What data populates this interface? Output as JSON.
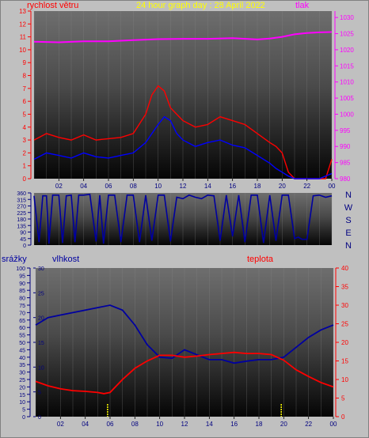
{
  "header": {
    "wind_label": "rychlost větru",
    "title": "24 hour graph day : 28 April 2022",
    "pressure_label": "tlak"
  },
  "bottom_header": {
    "rain_label": "srážky",
    "humidity_label": "vlhkost",
    "temp_label": "teplota"
  },
  "colors": {
    "background": "#c0c0c0",
    "wind": "#ff0000",
    "gust": "#0000ff",
    "pressure": "#ff00ff",
    "direction": "#0000a0",
    "humidity": "#0000a0",
    "temperature": "#ff0000",
    "rain_marks": "#ffff00",
    "title": "#ffff00"
  },
  "chart_data": [
    {
      "type": "line",
      "name": "wind-pressure",
      "x_ticks": [
        "02",
        "04",
        "06",
        "08",
        "10",
        "12",
        "14",
        "16",
        "18",
        "20",
        "22",
        "00"
      ],
      "xlim": [
        0,
        24
      ],
      "ylim_left": [
        0,
        13
      ],
      "ylim_right": [
        980,
        1032
      ],
      "left_ticks": [
        "0",
        "1",
        "2",
        "3",
        "4",
        "5",
        "6",
        "7",
        "8",
        "9",
        "10",
        "11",
        "12",
        "13"
      ],
      "right_ticks": [
        "980",
        "985",
        "990",
        "995",
        "1000",
        "1005",
        "1010",
        "1015",
        "1020",
        "1025",
        "1030"
      ],
      "series": [
        {
          "axis": "left",
          "x": [
            0,
            1,
            2,
            3,
            4,
            5,
            6,
            7,
            8,
            9,
            9.5,
            10,
            10.5,
            11,
            11.5,
            12,
            13,
            14,
            15,
            16,
            17,
            18,
            19,
            19.5,
            20,
            20.5,
            21,
            22,
            23,
            23.5,
            24
          ],
          "y": [
            3,
            3.5,
            3.2,
            3,
            3.4,
            3,
            3.1,
            3.2,
            3.5,
            5,
            6.5,
            7.2,
            6.8,
            5.5,
            5,
            4.5,
            4,
            4.2,
            4.8,
            4.5,
            4.2,
            3.5,
            2.8,
            2.5,
            2,
            0.5,
            0,
            0,
            0,
            0,
            1.5
          ]
        },
        {
          "axis": "left",
          "x": [
            0,
            1,
            2,
            3,
            4,
            5,
            6,
            7,
            8,
            9,
            10,
            10.5,
            11,
            11.5,
            12,
            13,
            14,
            15,
            16,
            17,
            18,
            19,
            19.5,
            20,
            20.5,
            21,
            22,
            23,
            24
          ],
          "y": [
            1.5,
            2,
            1.8,
            1.6,
            2,
            1.7,
            1.6,
            1.8,
            2,
            2.8,
            4.2,
            4.8,
            4.5,
            3.5,
            3,
            2.5,
            2.8,
            3,
            2.6,
            2.4,
            1.8,
            1.2,
            0.8,
            0.5,
            0.2,
            0,
            0,
            0,
            0.4
          ]
        },
        {
          "axis": "right",
          "x": [
            0,
            2,
            4,
            6,
            8,
            10,
            12,
            14,
            16,
            18,
            19,
            20,
            21,
            22,
            23,
            24
          ],
          "y": [
            1022.5,
            1022.3,
            1022.6,
            1022.6,
            1023,
            1023.3,
            1023.4,
            1023.4,
            1023.6,
            1023.2,
            1023.5,
            1024,
            1024.8,
            1025.2,
            1025.4,
            1025.5
          ]
        }
      ]
    },
    {
      "type": "line",
      "name": "wind-direction",
      "x_ticks": [
        "02",
        "04",
        "06",
        "08",
        "10",
        "12",
        "14",
        "16",
        "18",
        "20",
        "22",
        "00"
      ],
      "xlim": [
        0,
        24
      ],
      "ylim": [
        0,
        360
      ],
      "left_ticks": [
        "0",
        "45",
        "90",
        "135",
        "180",
        "225",
        "270",
        "315",
        "360"
      ],
      "compass": [
        "N",
        "W",
        "S",
        "E",
        "N"
      ],
      "series": [
        {
          "x": [
            0,
            0.4,
            0.7,
            1,
            1.2,
            1.5,
            2,
            2.3,
            2.6,
            3,
            3.3,
            3.6,
            4,
            4.5,
            5,
            5.3,
            5.6,
            6,
            6.5,
            7,
            7.5,
            8,
            8.5,
            9,
            9.5,
            10,
            10.5,
            11,
            11.5,
            12,
            12.5,
            13,
            13.5,
            14,
            14.5,
            15,
            15.5,
            16,
            16.5,
            17,
            17.5,
            18,
            18.5,
            19,
            19.5,
            20,
            20.5,
            21,
            21.3,
            21.6,
            22,
            22.5,
            23,
            23.5,
            24
          ],
          "y": [
            340,
            20,
            340,
            340,
            10,
            345,
            345,
            15,
            340,
            345,
            20,
            345,
            345,
            350,
            25,
            345,
            10,
            345,
            345,
            20,
            345,
            345,
            20,
            345,
            30,
            345,
            345,
            25,
            330,
            320,
            345,
            330,
            320,
            345,
            340,
            30,
            345,
            60,
            345,
            20,
            345,
            345,
            15,
            345,
            30,
            345,
            345,
            45,
            55,
            40,
            40,
            340,
            345,
            330,
            340
          ]
        }
      ]
    },
    {
      "type": "line",
      "name": "humidity-temperature",
      "x_ticks": [
        "02",
        "04",
        "06",
        "08",
        "10",
        "12",
        "14",
        "16",
        "18",
        "20",
        "22",
        "00"
      ],
      "xlim": [
        0,
        24
      ],
      "ylim_left": [
        0,
        30
      ],
      "ylim_right": [
        0,
        40
      ],
      "ylim_rain": [
        0,
        100
      ],
      "rain_ticks": [
        "0",
        "5",
        "10",
        "15",
        "20",
        "25",
        "30",
        "35",
        "40",
        "45",
        "50",
        "55",
        "60",
        "65",
        "70",
        "75",
        "80",
        "85",
        "90",
        "95",
        "100"
      ],
      "left_ticks": [
        "0",
        "5",
        "10",
        "15",
        "20",
        "25",
        "30"
      ],
      "right_ticks": [
        "0",
        "5",
        "10",
        "15",
        "20",
        "25",
        "30",
        "35",
        "40"
      ],
      "series": [
        {
          "axis": "left",
          "x": [
            0,
            1,
            2,
            3,
            4,
            5,
            6,
            7,
            8,
            9,
            10,
            11,
            12,
            13,
            14,
            15,
            16,
            17,
            18,
            19,
            20,
            21,
            22,
            23,
            24
          ],
          "y": [
            18.5,
            20,
            20.5,
            21,
            21.5,
            22,
            22.5,
            21.5,
            18.5,
            14.5,
            12,
            11.8,
            13.5,
            12.5,
            11.5,
            11.5,
            10.8,
            11.2,
            11.5,
            11.5,
            12,
            14,
            16,
            17.5,
            18.5
          ]
        },
        {
          "axis": "right",
          "x": [
            0,
            1,
            2,
            3,
            4,
            5,
            5.5,
            6,
            7,
            8,
            9,
            10,
            11,
            12,
            13,
            14,
            15,
            16,
            17,
            18,
            19,
            20,
            21,
            22,
            23,
            24
          ],
          "y": [
            9.5,
            8.3,
            7.5,
            7,
            6.8,
            6.5,
            6.2,
            6.5,
            10,
            13,
            15,
            16.5,
            16.5,
            16,
            16.3,
            16.7,
            17,
            17.3,
            17,
            17,
            16.7,
            15.2,
            12.6,
            10.8,
            9.2,
            8
          ]
        }
      ],
      "rain_marks_x": [
        5.8,
        19.8
      ]
    }
  ]
}
